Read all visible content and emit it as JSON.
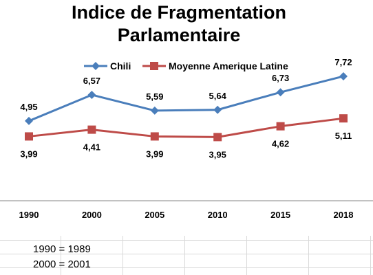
{
  "chart_data": {
    "type": "line",
    "title": "Indice de Fragmentation Parlamentaire",
    "title_lines": [
      "Indice de Fragmentation",
      "Parlamentaire"
    ],
    "categories": [
      "1990",
      "2000",
      "2005",
      "2010",
      "2015",
      "2018"
    ],
    "series": [
      {
        "name": "Chili",
        "color": "#4a7ebb",
        "marker": "diamond",
        "values": [
          4.95,
          6.57,
          5.59,
          5.64,
          6.73,
          7.72
        ],
        "labels": [
          "4,95",
          "6,57",
          "5,59",
          "5,64",
          "6,73",
          "7,72"
        ]
      },
      {
        "name": "Moyenne Amerique Latine",
        "color": "#be4b48",
        "marker": "square",
        "values": [
          3.99,
          4.41,
          3.99,
          3.95,
          4.62,
          5.11
        ],
        "labels": [
          "3,99",
          "4,41",
          "3,99",
          "3,95",
          "4,62",
          "5,11"
        ]
      }
    ],
    "xlabel": "",
    "ylabel": "",
    "ylim": [
      0,
      8.7
    ],
    "legend": "top",
    "grid": false
  },
  "notes": [
    "1990 = 1989",
    "2000 = 2001"
  ]
}
